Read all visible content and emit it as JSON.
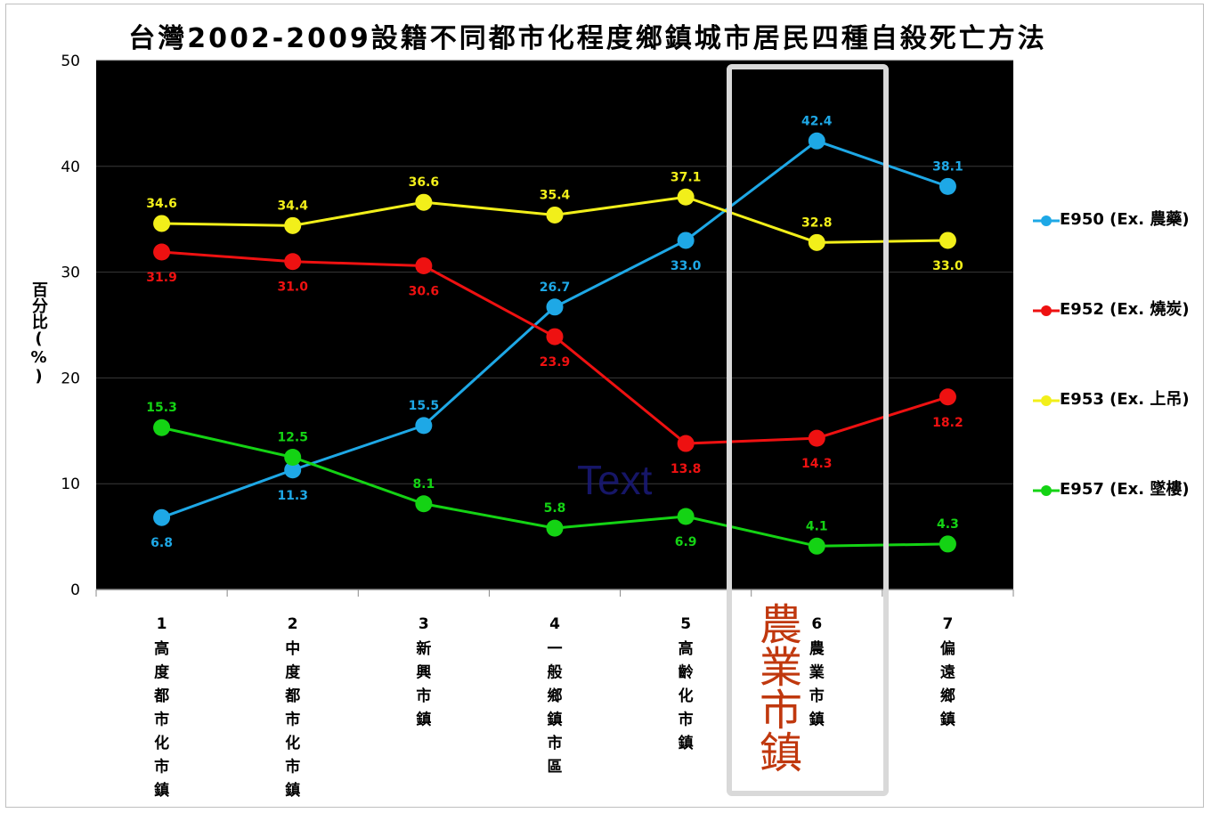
{
  "chart_data": {
    "type": "line",
    "title": "台灣2002-2009設籍不同都市化程度鄉鎮城市居民四種自殺死亡方法",
    "ylabel": "百分比(%)",
    "xlabel": "",
    "ylim": [
      0,
      50
    ],
    "yticks": [
      0,
      10,
      20,
      30,
      40,
      50
    ],
    "grid": true,
    "legend_position": "right",
    "background": "#000000",
    "categories": [
      {
        "num": "1",
        "name": "高度都市化市鎮"
      },
      {
        "num": "2",
        "name": "中度都市化市鎮"
      },
      {
        "num": "3",
        "name": "新興市鎮"
      },
      {
        "num": "4",
        "name": "一般鄉鎮市區"
      },
      {
        "num": "5",
        "name": "高齡化市鎮"
      },
      {
        "num": "6",
        "name": "農業市鎮"
      },
      {
        "num": "7",
        "name": "偏遠鄉鎮"
      }
    ],
    "series": [
      {
        "name": "E950 (Ex. 農藥)",
        "color": "#1ea8e6",
        "values": [
          6.8,
          11.3,
          15.5,
          26.7,
          33.0,
          42.4,
          38.1
        ],
        "label_pos": [
          "below",
          "below",
          "above",
          "above",
          "below",
          "above",
          "above"
        ]
      },
      {
        "name": "E952 (Ex. 燒炭)",
        "color": "#ee1111",
        "values": [
          31.9,
          31.0,
          30.6,
          23.9,
          13.8,
          14.3,
          18.2
        ],
        "label_pos": [
          "below",
          "below",
          "below",
          "below",
          "below",
          "below",
          "below"
        ]
      },
      {
        "name": "E953 (Ex. 上吊)",
        "color": "#f2ef1a",
        "values": [
          34.6,
          34.4,
          36.6,
          35.4,
          37.1,
          32.8,
          33.0
        ],
        "label_pos": [
          "above",
          "above",
          "above",
          "above",
          "above",
          "above",
          "below"
        ]
      },
      {
        "name": "E957 (Ex. 墜樓)",
        "color": "#14d314",
        "values": [
          15.3,
          12.5,
          8.1,
          5.8,
          6.9,
          4.1,
          4.3
        ],
        "label_pos": [
          "above",
          "above",
          "above",
          "above",
          "below",
          "above",
          "above"
        ]
      }
    ]
  },
  "annotation": {
    "highlight_text": "農業市鎮",
    "highlight_category_index": 5,
    "watermark": "Text"
  }
}
